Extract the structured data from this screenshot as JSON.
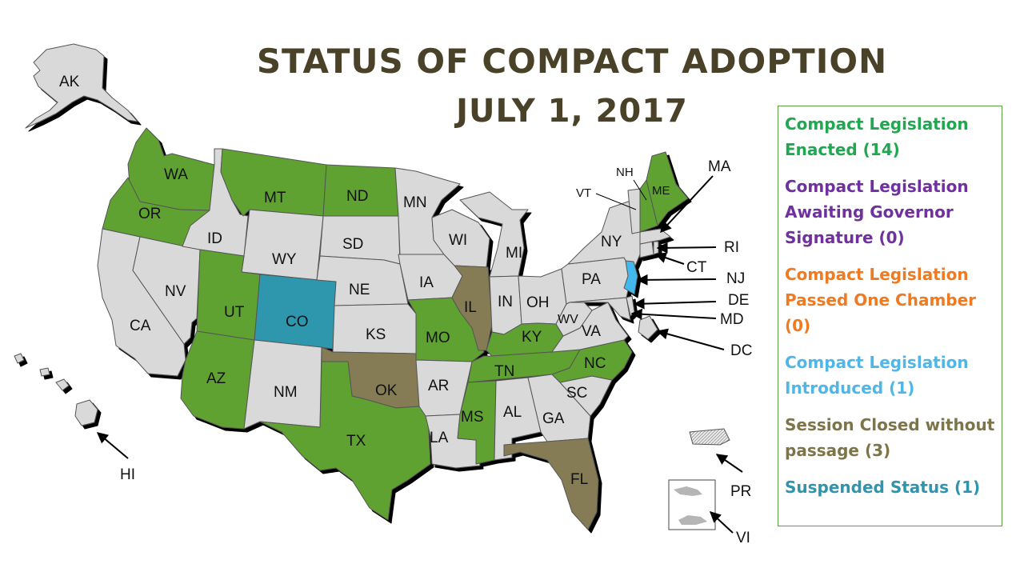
{
  "title_line1": "STATUS OF COMPACT ADOPTION",
  "title_line2": "JULY 1, 2017",
  "legend": [
    {
      "label": "Compact Legislation Enacted (14)",
      "color": "#1fa84f",
      "key": "enacted"
    },
    {
      "label": "Compact Legislation Awaiting Governor Signature (0)",
      "color": "#7030a0",
      "key": "awaiting"
    },
    {
      "label": "Compact Legislation Passed One Chamber (0)",
      "color": "#f07a20",
      "key": "one_chamber"
    },
    {
      "label": "Compact Legislation Introduced (1)",
      "color": "#4fb7e8",
      "key": "introduced"
    },
    {
      "label": "Session Closed without passage (3)",
      "color": "#7d7448",
      "key": "closed"
    },
    {
      "label": "Suspended Status (1)",
      "color": "#2f94ad",
      "key": "suspended"
    }
  ],
  "fill_colors": {
    "enacted": "#5fa232",
    "introduced": "#43b8ec",
    "closed": "#857b57",
    "suspended": "#2f96ad",
    "none": "#d9d9d9"
  },
  "states": {
    "WA": "enacted",
    "OR": "enacted",
    "MT": "enacted",
    "ND": "enacted",
    "UT": "enacted",
    "AZ": "enacted",
    "TX": "enacted",
    "MO": "enacted",
    "KY": "enacted",
    "TN": "enacted",
    "MS": "enacted",
    "NC": "enacted",
    "NH": "enacted",
    "ME": "enacted",
    "NJ": "introduced",
    "IL": "closed",
    "OK": "closed",
    "FL": "closed",
    "CO": "suspended"
  },
  "labels": {
    "AK": "AK",
    "WA": "WA",
    "OR": "OR",
    "CA": "CA",
    "NV": "NV",
    "ID": "ID",
    "MT": "MT",
    "WY": "WY",
    "UT": "UT",
    "AZ": "AZ",
    "CO": "CO",
    "NM": "NM",
    "ND": "ND",
    "SD": "SD",
    "NE": "NE",
    "KS": "KS",
    "OK": "OK",
    "TX": "TX",
    "MN": "MN",
    "IA": "IA",
    "MO": "MO",
    "AR": "AR",
    "LA": "LA",
    "WI": "WI",
    "IL": "IL",
    "MI": "MI",
    "IN": "IN",
    "OH": "OH",
    "KY": "KY",
    "TN": "TN",
    "MS": "MS",
    "AL": "AL",
    "GA": "GA",
    "FL": "FL",
    "SC": "SC",
    "NC": "NC",
    "VA": "VA",
    "WV": "WV",
    "PA": "PA",
    "NY": "NY",
    "ME": "ME",
    "VT": "VT",
    "NH": "NH",
    "MA": "MA",
    "RI": "RI",
    "CT": "CT",
    "NJ": "NJ",
    "DE": "DE",
    "MD": "MD",
    "DC": "DC",
    "HI": "HI",
    "PR": "PR",
    "VI": "VI"
  }
}
